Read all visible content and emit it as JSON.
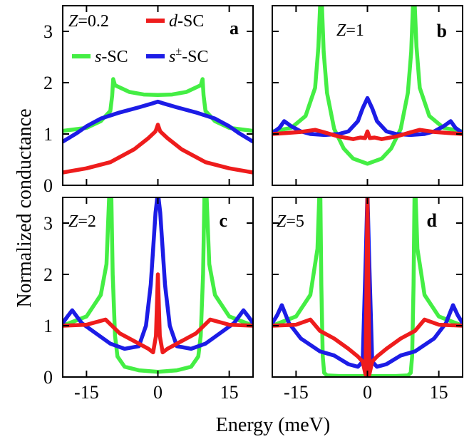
{
  "figure": {
    "ylabel": "Normalized conductance",
    "xlabel": "Energy (meV)",
    "x_ticks": [
      "-15",
      "0",
      "15"
    ],
    "y_ticks": [
      "0",
      "1",
      "2",
      "3"
    ],
    "legend": [
      {
        "key": "d",
        "italic": "d",
        "rest": "-SC"
      },
      {
        "key": "s",
        "italic": "s",
        "rest": "-SC"
      },
      {
        "key": "spm",
        "italic": "s",
        "sup": "±",
        "rest": "-SC"
      }
    ],
    "colors": {
      "d": "#ee1c1c",
      "s": "#44ee44",
      "spm": "#1c1ce6"
    }
  },
  "chart_data": [
    {
      "type": "line",
      "panel": "a",
      "z_prefix": "Z",
      "z_value": "=0.2",
      "xlim": [
        -20,
        20
      ],
      "ylim": [
        0,
        3.5
      ],
      "series": [
        {
          "name": "d-SC",
          "key": "d",
          "x": [
            -20,
            -15,
            -10,
            -5,
            -2,
            -0.5,
            0,
            0.5,
            2,
            5,
            10,
            15,
            20
          ],
          "y": [
            0.25,
            0.33,
            0.45,
            0.7,
            0.92,
            1.05,
            1.18,
            1.05,
            0.92,
            0.7,
            0.45,
            0.33,
            0.25
          ]
        },
        {
          "name": "s-SC",
          "key": "s",
          "x": [
            -20,
            -15,
            -12,
            -10,
            -9.6,
            -9.4,
            -9,
            -6,
            -3,
            0,
            3,
            6,
            9,
            9.4,
            9.6,
            10,
            12,
            15,
            20
          ],
          "y": [
            1.06,
            1.12,
            1.25,
            1.45,
            1.75,
            2.07,
            1.95,
            1.82,
            1.77,
            1.76,
            1.77,
            1.82,
            1.95,
            2.07,
            1.75,
            1.45,
            1.25,
            1.12,
            1.06
          ]
        },
        {
          "name": "s±-SC",
          "key": "spm",
          "x": [
            -20,
            -17,
            -15,
            -12,
            -8,
            -4,
            -1,
            0,
            1,
            4,
            8,
            12,
            15,
            17,
            20
          ],
          "y": [
            0.85,
            1.02,
            1.15,
            1.3,
            1.42,
            1.52,
            1.6,
            1.63,
            1.6,
            1.52,
            1.42,
            1.3,
            1.15,
            1.02,
            0.85
          ]
        }
      ]
    },
    {
      "type": "line",
      "panel": "b",
      "z_prefix": "Z",
      "z_value": "=1",
      "xlim": [
        -20,
        20
      ],
      "ylim": [
        0,
        3.5
      ],
      "series": [
        {
          "name": "d-SC",
          "key": "d",
          "x": [
            -20,
            -17,
            -14,
            -11,
            -9,
            -6,
            -3,
            -1.5,
            -0.5,
            0,
            0.5,
            1.5,
            3,
            6,
            9,
            11,
            14,
            17,
            20
          ],
          "y": [
            1.0,
            1.02,
            1.04,
            1.08,
            1.03,
            0.95,
            0.9,
            0.93,
            0.92,
            1.05,
            0.92,
            0.93,
            0.9,
            0.95,
            1.03,
            1.08,
            1.04,
            1.02,
            1.0
          ]
        },
        {
          "name": "s-SC",
          "key": "s",
          "x": [
            -20,
            -16,
            -13,
            -11,
            -10.3,
            -9.9,
            -9.6,
            -9.2,
            -8.5,
            -7,
            -5,
            -3,
            0,
            3,
            5,
            7,
            8.5,
            9.2,
            9.6,
            9.9,
            10.3,
            11,
            13,
            16,
            20
          ],
          "y": [
            1.05,
            1.12,
            1.35,
            1.9,
            2.7,
            3.6,
            3.6,
            2.6,
            1.8,
            1.1,
            0.72,
            0.52,
            0.42,
            0.52,
            0.72,
            1.1,
            1.8,
            2.6,
            3.6,
            3.6,
            2.7,
            1.9,
            1.35,
            1.12,
            1.05
          ]
        },
        {
          "name": "s±-SC",
          "key": "spm",
          "x": [
            -20,
            -18.5,
            -17.5,
            -16,
            -14,
            -12,
            -9,
            -6,
            -4,
            -2,
            -1,
            0,
            1,
            2,
            4,
            6,
            9,
            12,
            14,
            16,
            17.5,
            18.5,
            20
          ],
          "y": [
            1.02,
            1.12,
            1.25,
            1.15,
            1.05,
            1.0,
            0.98,
            1.0,
            1.05,
            1.25,
            1.5,
            1.7,
            1.5,
            1.25,
            1.05,
            1.0,
            0.98,
            1.0,
            1.05,
            1.15,
            1.25,
            1.12,
            1.02
          ]
        }
      ]
    },
    {
      "type": "line",
      "panel": "c",
      "z_prefix": "Z",
      "z_value": "=2",
      "xlim": [
        -20,
        20
      ],
      "ylim": [
        0,
        3.5
      ],
      "series": [
        {
          "name": "d-SC",
          "key": "d",
          "x": [
            -20,
            -15,
            -11,
            -8,
            -5,
            -2,
            -1,
            -0.4,
            0,
            0.4,
            1,
            2,
            5,
            8,
            11,
            15,
            20
          ],
          "y": [
            1.0,
            1.02,
            1.12,
            0.85,
            0.7,
            0.55,
            0.48,
            0.8,
            2.0,
            0.8,
            0.48,
            0.55,
            0.7,
            0.85,
            1.12,
            1.02,
            1.0
          ]
        },
        {
          "name": "s-SC",
          "key": "s",
          "x": [
            -20,
            -15,
            -12,
            -10.8,
            -10.2,
            -9.8,
            -9.5,
            -9.0,
            -8.5,
            -7,
            -4,
            0,
            4,
            7,
            8.5,
            9.0,
            9.5,
            9.8,
            10.2,
            10.8,
            12,
            15,
            20
          ],
          "y": [
            1.0,
            1.18,
            1.6,
            2.2,
            3.6,
            3.6,
            2.0,
            0.8,
            0.4,
            0.2,
            0.13,
            0.1,
            0.13,
            0.2,
            0.4,
            0.8,
            2.0,
            3.6,
            3.6,
            2.2,
            1.6,
            1.18,
            1.0
          ]
        },
        {
          "name": "s±-SC",
          "key": "spm",
          "x": [
            -20,
            -19,
            -18,
            -16,
            -13,
            -10,
            -7,
            -4,
            -2.5,
            -1.5,
            -0.5,
            0,
            0.5,
            1.5,
            2.5,
            4,
            7,
            10,
            13,
            16,
            18,
            19,
            20
          ],
          "y": [
            1.05,
            1.18,
            1.3,
            1.05,
            0.85,
            0.65,
            0.55,
            0.6,
            1.0,
            1.8,
            3.2,
            3.6,
            3.2,
            1.8,
            1.0,
            0.6,
            0.55,
            0.65,
            0.85,
            1.05,
            1.3,
            1.18,
            1.05
          ]
        }
      ]
    },
    {
      "type": "line",
      "panel": "d",
      "z_prefix": "Z",
      "z_value": "=5",
      "xlim": [
        -20,
        20
      ],
      "ylim": [
        0,
        3.5
      ],
      "series": [
        {
          "name": "d-SC",
          "key": "d",
          "x": [
            -20,
            -15,
            -12,
            -10,
            -7,
            -4,
            -2,
            -1,
            -0.4,
            0,
            0.4,
            1,
            2,
            4,
            7,
            10,
            12,
            15,
            20
          ],
          "y": [
            1.0,
            1.02,
            1.12,
            0.9,
            0.75,
            0.55,
            0.4,
            0.3,
            0.05,
            3.5,
            0.05,
            0.3,
            0.4,
            0.55,
            0.75,
            0.9,
            1.12,
            1.02,
            1.0
          ]
        },
        {
          "name": "s-SC",
          "key": "s",
          "x": [
            -20,
            -15,
            -12,
            -10.5,
            -10.1,
            -9.9,
            -9.7,
            -9.4,
            -9.1,
            -8.5,
            -6,
            0,
            6,
            8.5,
            9.1,
            9.4,
            9.7,
            9.9,
            10.1,
            10.5,
            12,
            15,
            20
          ],
          "y": [
            1.0,
            1.18,
            1.6,
            2.5,
            3.6,
            3.6,
            1.8,
            0.4,
            0.08,
            0.03,
            0.02,
            0.02,
            0.02,
            0.03,
            0.08,
            0.4,
            1.8,
            3.6,
            3.6,
            2.5,
            1.6,
            1.18,
            1.0
          ]
        },
        {
          "name": "s±-SC",
          "key": "spm",
          "x": [
            -20,
            -19,
            -18,
            -16.5,
            -14,
            -10,
            -7,
            -4,
            -2,
            -1,
            -0.3,
            0,
            0.3,
            1,
            2,
            4,
            7,
            10,
            14,
            16.5,
            18,
            19,
            20
          ],
          "y": [
            1.05,
            1.2,
            1.4,
            1.05,
            0.75,
            0.5,
            0.42,
            0.25,
            0.2,
            0.3,
            2.5,
            3.6,
            2.5,
            0.3,
            0.2,
            0.25,
            0.42,
            0.5,
            0.75,
            1.05,
            1.4,
            1.2,
            1.05
          ]
        }
      ]
    }
  ]
}
